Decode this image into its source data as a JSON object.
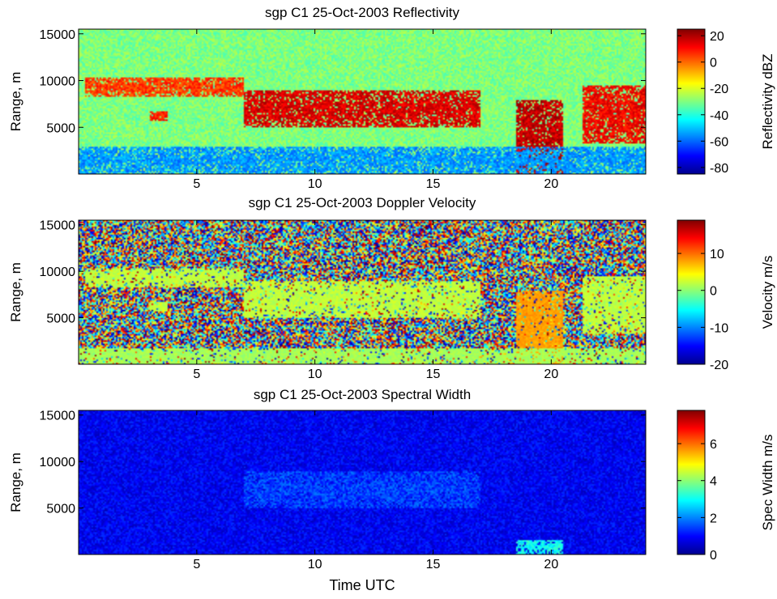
{
  "figure": {
    "xlabel": "Time UTC"
  },
  "chart_data": [
    {
      "type": "heatmap",
      "title": "sgp C1 25-Oct-2003 Reflectivity",
      "xlabel": "",
      "ylabel": "Range, m",
      "xlim": [
        0,
        24
      ],
      "ylim": [
        0,
        15500
      ],
      "xticks": [
        5,
        10,
        15,
        20
      ],
      "yticks": [
        5000,
        10000,
        15000
      ],
      "colorbar": {
        "label": "Reflectivity dBZ",
        "range": [
          -85,
          25
        ],
        "ticks": [
          20,
          0,
          -20,
          -40,
          -60,
          -80
        ]
      },
      "background_value": -30,
      "features": [
        {
          "name": "upper cloud layer",
          "time": [
            0.3,
            7.0
          ],
          "range_m": [
            8300,
            10300
          ],
          "value": 5
        },
        {
          "name": "small cloud patch",
          "time": [
            3.0,
            3.8
          ],
          "range_m": [
            5700,
            6700
          ],
          "value": 8
        },
        {
          "name": "main cloud band",
          "time": [
            7.0,
            17.0
          ],
          "range_m": [
            5000,
            9000
          ],
          "value": 15
        },
        {
          "name": "precipitation shaft",
          "time": [
            18.5,
            20.5
          ],
          "range_m": [
            0,
            8000
          ],
          "value": 18
        },
        {
          "name": "late cloud",
          "time": [
            21.3,
            24.0
          ],
          "range_m": [
            3200,
            9500
          ],
          "value": 12
        },
        {
          "name": "low boundary layer",
          "time": [
            0,
            24
          ],
          "range_m": [
            0,
            3000
          ],
          "value": -55
        }
      ]
    },
    {
      "type": "heatmap",
      "title": "sgp C1 25-Oct-2003 Doppler Velocity",
      "xlabel": "",
      "ylabel": "Range, m",
      "xlim": [
        0,
        24
      ],
      "ylim": [
        0,
        15500
      ],
      "xticks": [
        5,
        10,
        15,
        20
      ],
      "yticks": [
        5000,
        10000,
        15000
      ],
      "colorbar": {
        "label": "Velocity m/s",
        "range": [
          -20,
          19
        ],
        "ticks": [
          10,
          0,
          -10,
          -20
        ]
      },
      "background_value": "noise",
      "features": [
        {
          "name": "upper cloud layer",
          "time": [
            0.3,
            7.0
          ],
          "range_m": [
            8300,
            10300
          ],
          "value": 2
        },
        {
          "name": "small cloud patch",
          "time": [
            3.0,
            3.8
          ],
          "range_m": [
            5700,
            6700
          ],
          "value": 2
        },
        {
          "name": "main cloud band",
          "time": [
            7.0,
            17.0
          ],
          "range_m": [
            5000,
            9000
          ],
          "value": 2
        },
        {
          "name": "precipitation shaft",
          "time": [
            18.5,
            20.5
          ],
          "range_m": [
            0,
            8000
          ],
          "value": 8
        },
        {
          "name": "late cloud",
          "time": [
            21.3,
            24.0
          ],
          "range_m": [
            3200,
            9500
          ],
          "value": 2
        },
        {
          "name": "low boundary layer",
          "time": [
            0,
            24
          ],
          "range_m": [
            0,
            1800
          ],
          "value": 1
        }
      ]
    },
    {
      "type": "heatmap",
      "title": "sgp C1 25-Oct-2003 Spectral Width",
      "xlabel": "Time UTC",
      "ylabel": "Range, m",
      "xlim": [
        0,
        24
      ],
      "ylim": [
        0,
        15500
      ],
      "xticks": [
        5,
        10,
        15,
        20
      ],
      "yticks": [
        5000,
        10000,
        15000
      ],
      "colorbar": {
        "label": "Spec Width m/s",
        "range": [
          0,
          7.8
        ],
        "ticks": [
          6,
          4,
          2,
          0
        ]
      },
      "background_value": 0.9,
      "features": [
        {
          "name": "main cloud band",
          "time": [
            7.0,
            17.0
          ],
          "range_m": [
            5000,
            9000
          ],
          "value": 1.5
        },
        {
          "name": "precipitation shaft",
          "time": [
            18.5,
            20.5
          ],
          "range_m": [
            0,
            1500
          ],
          "value": 3.0
        }
      ]
    }
  ]
}
